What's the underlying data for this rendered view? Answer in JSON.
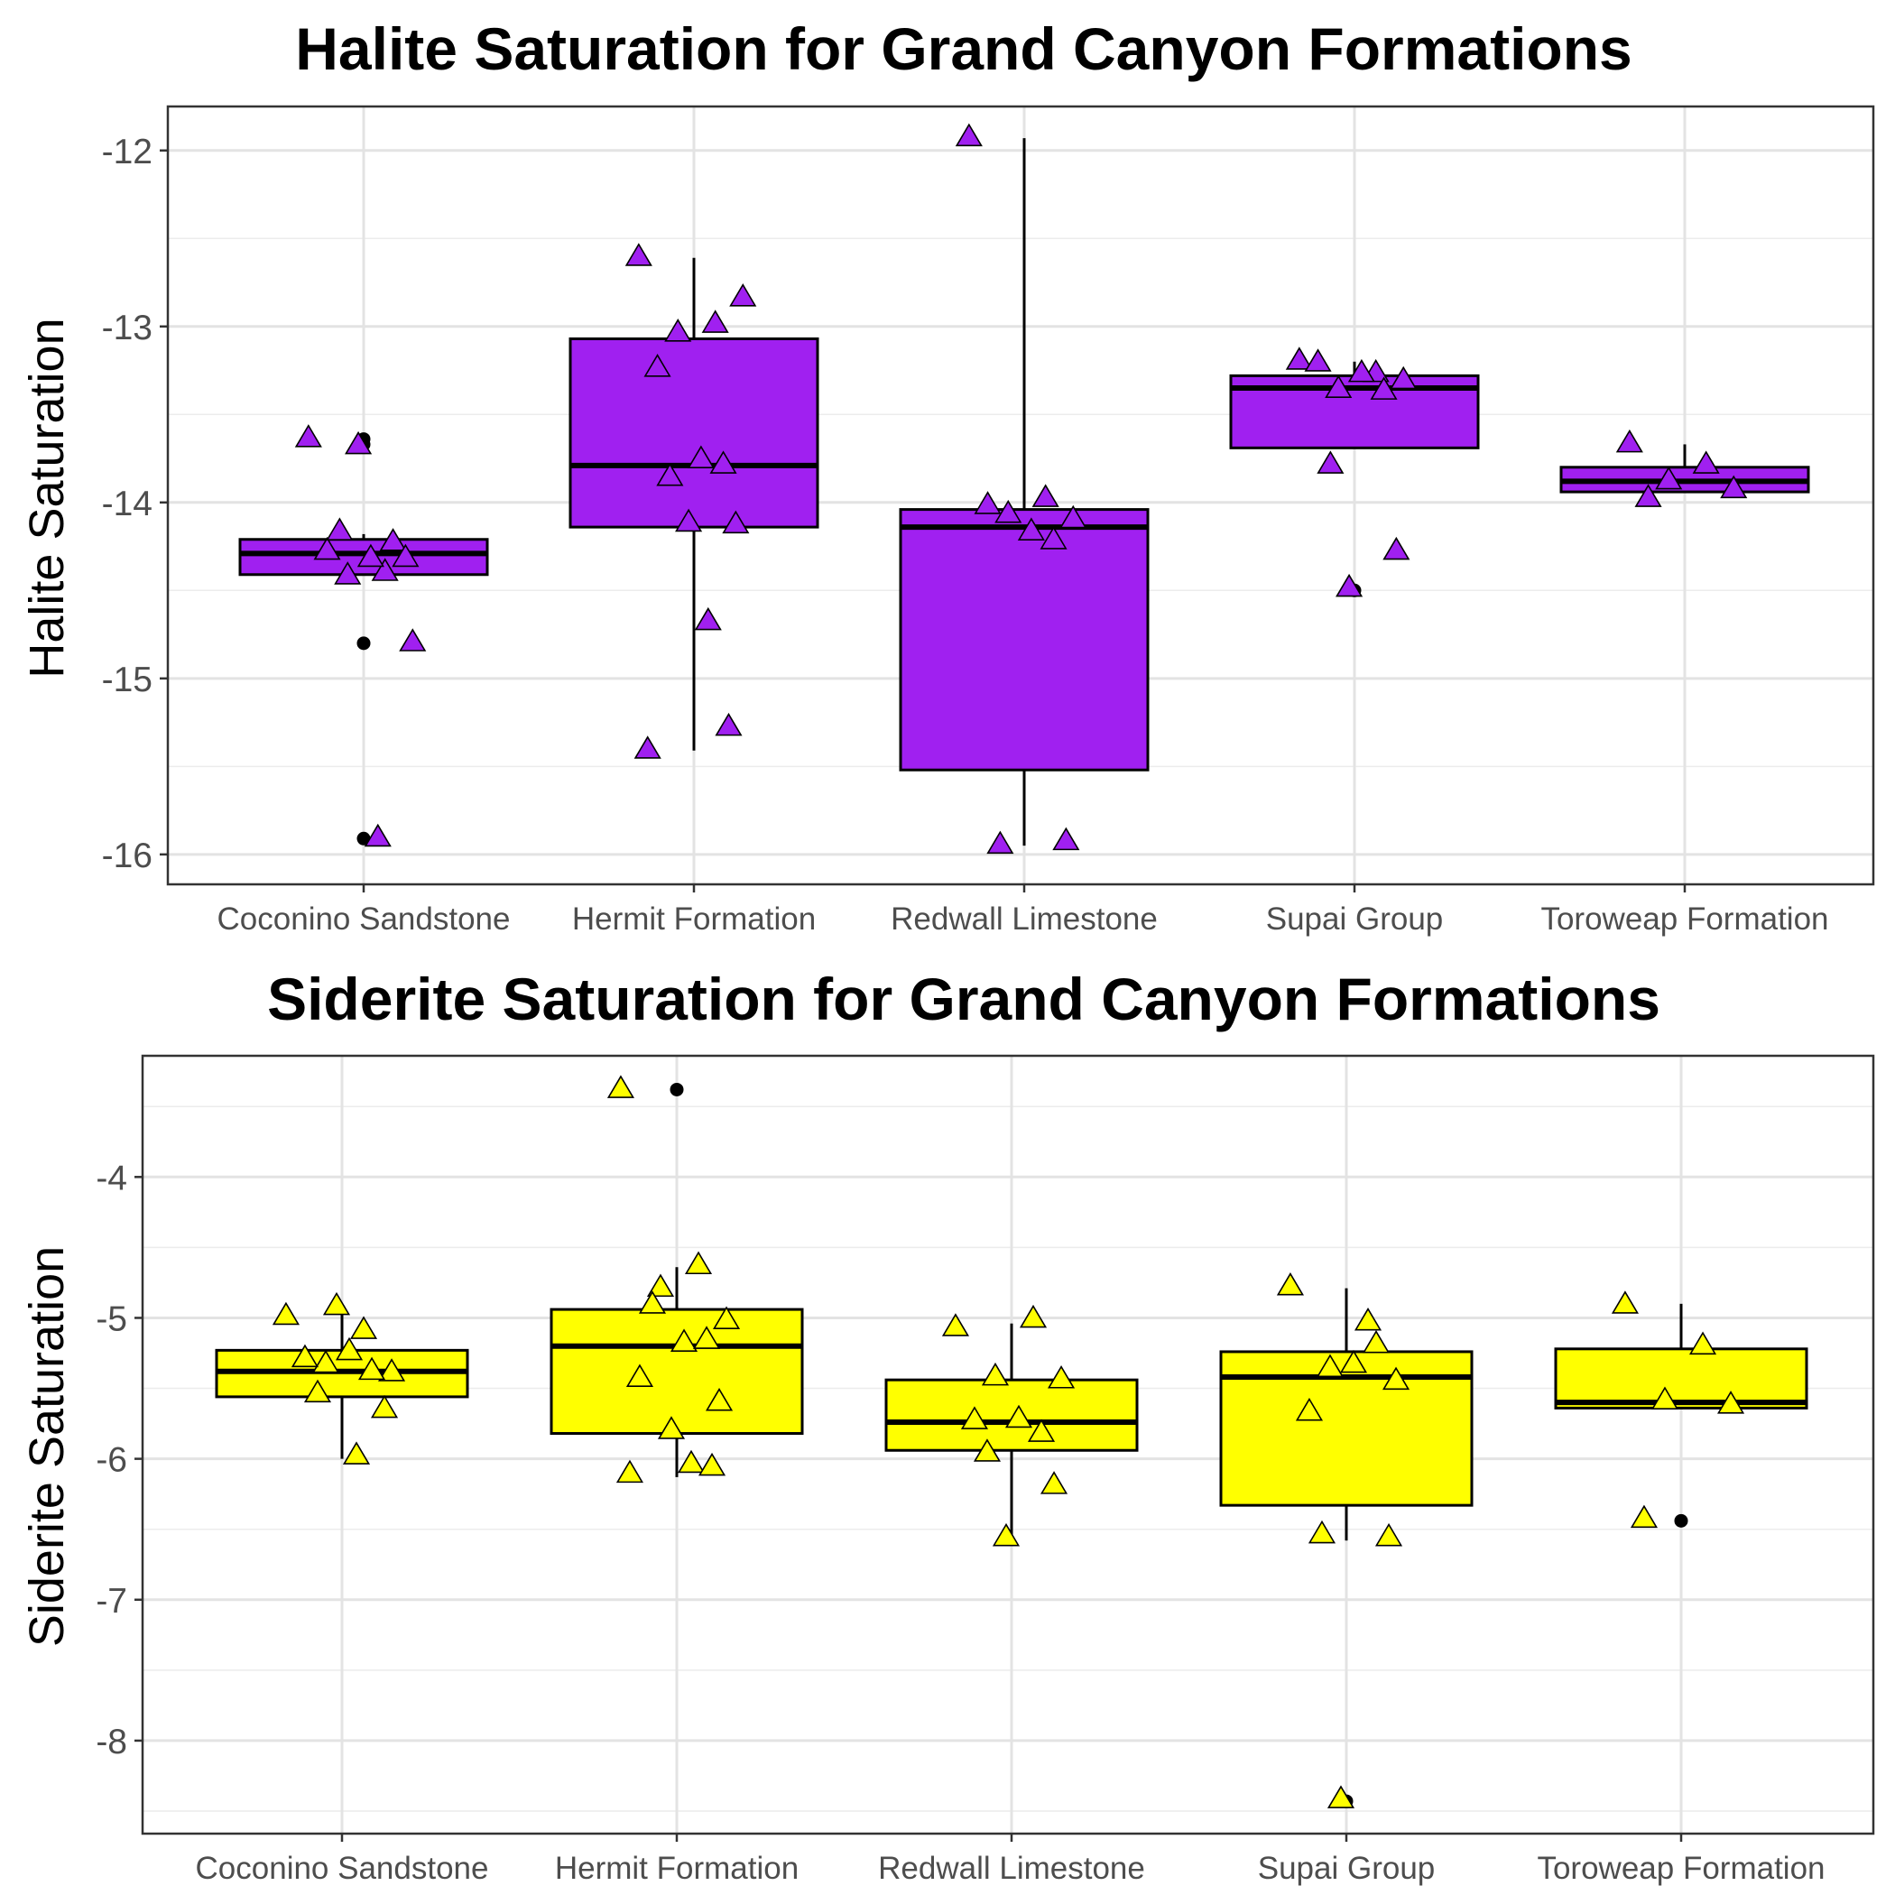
{
  "chart_data": [
    {
      "type": "box",
      "title": "Halite Saturation for Grand Canyon Formations",
      "xlabel": "",
      "ylabel": "Halite Saturation",
      "categories": [
        "Coconino Sandstone",
        "Hermit Formation",
        "Redwall Limestone",
        "Supai Group",
        "Toroweap Formation"
      ],
      "yticks": [
        "-12",
        "-13",
        "-14",
        "-15",
        "-16"
      ],
      "ylim": [
        -16.17,
        -11.75
      ],
      "grid": true,
      "fill_color": "#A020F0",
      "boxes": [
        {
          "category": "Coconino Sandstone",
          "q1": -14.41,
          "median": -14.29,
          "q3": -14.21,
          "whisker_low": -14.41,
          "whisker_high": -14.18,
          "outliers": [
            -13.64,
            -13.67,
            -14.8,
            -15.91
          ]
        },
        {
          "category": "Hermit Formation",
          "q1": -14.14,
          "median": -13.79,
          "q3": -13.07,
          "whisker_low": -15.41,
          "whisker_high": -12.61,
          "outliers": []
        },
        {
          "category": "Redwall Limestone",
          "q1": -15.52,
          "median": -14.14,
          "q3": -14.04,
          "whisker_low": -15.95,
          "whisker_high": -11.93,
          "outliers": []
        },
        {
          "category": "Supai Group",
          "q1": -13.69,
          "median": -13.35,
          "q3": -13.28,
          "whisker_low": -13.69,
          "whisker_high": -13.2,
          "outliers": [
            -14.5
          ]
        },
        {
          "category": "Toroweap Formation",
          "q1": -13.94,
          "median": -13.88,
          "q3": -13.8,
          "whisker_low": -13.94,
          "whisker_high": -13.67,
          "outliers": []
        }
      ],
      "points": [
        {
          "category": "Coconino Sandstone",
          "y": [
            -13.63,
            -14.39,
            -14.41,
            -14.79,
            -14.27,
            -14.31,
            -14.22,
            -14.16,
            -14.31,
            -13.67,
            -15.9
          ]
        },
        {
          "category": "Hermit Formation",
          "y": [
            -12.6,
            -12.98,
            -13.03,
            -12.83,
            -13.23,
            -13.75,
            -13.78,
            -13.85,
            -14.12,
            -14.11,
            -14.67,
            -15.4,
            -15.27
          ]
        },
        {
          "category": "Redwall Limestone",
          "y": [
            -11.92,
            -13.97,
            -14.06,
            -14.09,
            -14.01,
            -14.16,
            -14.21,
            -15.94,
            -15.92
          ]
        },
        {
          "category": "Supai Group",
          "y": [
            -13.19,
            -13.26,
            -13.35,
            -13.3,
            -13.2,
            -13.26,
            -13.36,
            -13.78,
            -14.27,
            -14.48
          ]
        },
        {
          "category": "Toroweap Formation",
          "y": [
            -13.66,
            -13.78,
            -13.87,
            -13.92,
            -13.97
          ]
        }
      ]
    },
    {
      "type": "box",
      "title": "Siderite Saturation for Grand Canyon Formations",
      "xlabel": "",
      "ylabel": "Siderite Saturation",
      "categories": [
        "Coconino Sandstone",
        "Hermit Formation",
        "Redwall Limestone",
        "Supai Group",
        "Toroweap Formation"
      ],
      "yticks": [
        "-4",
        "-5",
        "-6",
        "-7",
        "-8"
      ],
      "ylim": [
        -8.66,
        -3.14
      ],
      "grid": true,
      "fill_color": "#FFFF00",
      "boxes": [
        {
          "category": "Coconino Sandstone",
          "q1": -5.56,
          "median": -5.38,
          "q3": -5.23,
          "whisker_low": -6.0,
          "whisker_high": -4.95,
          "outliers": []
        },
        {
          "category": "Hermit Formation",
          "q1": -5.82,
          "median": -5.2,
          "q3": -4.94,
          "whisker_low": -6.13,
          "whisker_high": -4.64,
          "outliers": [
            -3.38
          ]
        },
        {
          "category": "Redwall Limestone",
          "q1": -5.94,
          "median": -5.74,
          "q3": -5.44,
          "whisker_low": -6.58,
          "whisker_high": -5.04,
          "outliers": []
        },
        {
          "category": "Supai Group",
          "q1": -6.33,
          "median": -5.42,
          "q3": -5.24,
          "whisker_low": -6.58,
          "whisker_high": -4.79,
          "outliers": [
            -8.43
          ]
        },
        {
          "category": "Toroweap Formation",
          "q1": -5.64,
          "median": -5.6,
          "q3": -5.22,
          "whisker_low": -5.64,
          "whisker_high": -4.9,
          "outliers": [
            -6.44
          ]
        }
      ],
      "points": [
        {
          "category": "Coconino Sandstone",
          "y": [
            -4.98,
            -5.08,
            -5.32,
            -5.38,
            -5.28,
            -5.23,
            -5.37,
            -5.53,
            -5.64,
            -4.91,
            -5.97
          ]
        },
        {
          "category": "Hermit Formation",
          "y": [
            -3.37,
            -4.62,
            -4.78,
            -5.01,
            -5.42,
            -5.17,
            -5.15,
            -4.9,
            -5.59,
            -5.79,
            -6.03,
            -6.1,
            -6.05
          ]
        },
        {
          "category": "Redwall Limestone",
          "y": [
            -5.06,
            -5.0,
            -5.41,
            -5.43,
            -5.72,
            -5.71,
            -5.81,
            -5.95,
            -6.18,
            -6.55
          ]
        },
        {
          "category": "Supai Group",
          "y": [
            -4.77,
            -5.02,
            -5.35,
            -5.44,
            -5.66,
            -5.32,
            -5.18,
            -6.53,
            -6.55,
            -8.41
          ]
        },
        {
          "category": "Toroweap Formation",
          "y": [
            -4.9,
            -5.19,
            -5.58,
            -5.61,
            -6.42
          ]
        }
      ]
    }
  ]
}
